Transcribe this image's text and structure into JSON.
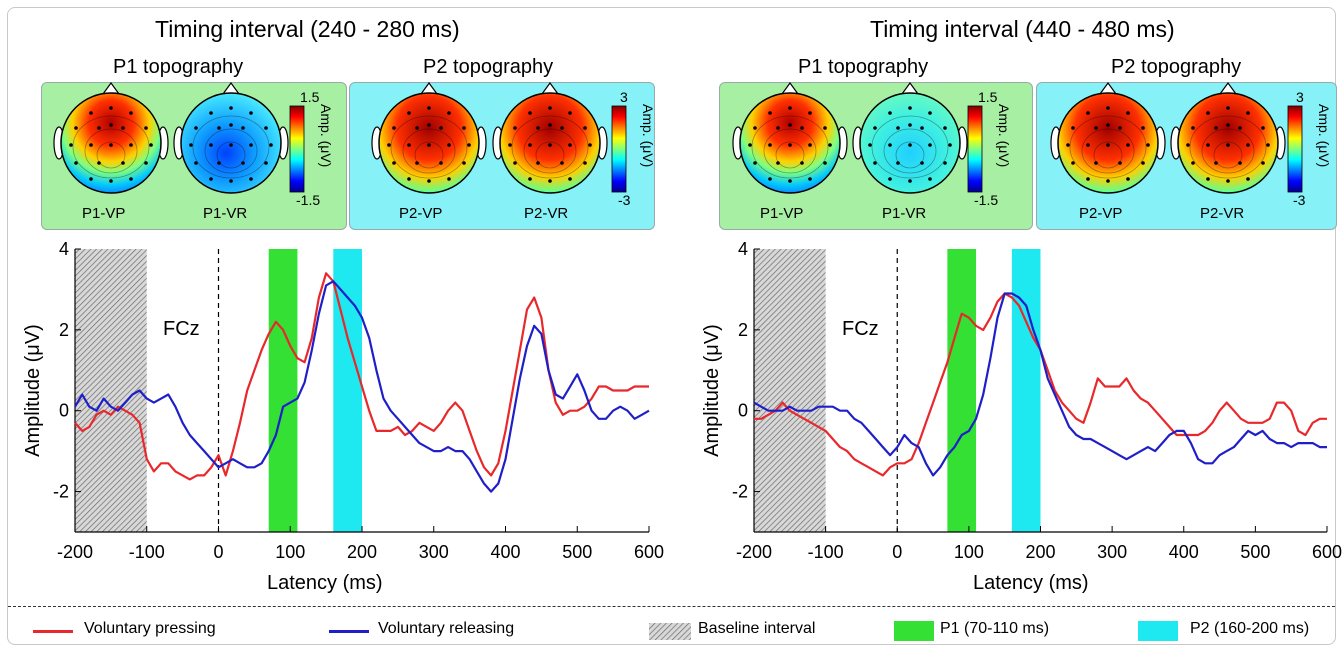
{
  "chart_data": [
    {
      "type": "line",
      "title": "Timing interval (240 - 280 ms)",
      "xlabel": "Latency (ms)",
      "ylabel": "Amplitude (μV)",
      "xlim": [
        -200,
        600
      ],
      "ylim": [
        -3,
        4
      ],
      "xticks": [
        -200,
        -100,
        0,
        100,
        200,
        300,
        400,
        500,
        600
      ],
      "yticks": [
        -2,
        0,
        2,
        4
      ],
      "channel": "FCz",
      "shaded_intervals": [
        {
          "name": "Baseline interval",
          "x": [
            -200,
            -100
          ]
        },
        {
          "name": "P1 (70-110 ms)",
          "x": [
            70,
            110
          ]
        },
        {
          "name": "P2 (160-200 ms)",
          "x": [
            160,
            200
          ]
        }
      ],
      "series": [
        {
          "name": "Voluntary pressing",
          "color": "#e8282b",
          "x": [
            -200,
            -190,
            -180,
            -170,
            -160,
            -150,
            -140,
            -130,
            -120,
            -110,
            -100,
            -90,
            -80,
            -70,
            -60,
            -50,
            -40,
            -30,
            -20,
            -10,
            0,
            10,
            20,
            30,
            40,
            50,
            60,
            70,
            80,
            90,
            100,
            110,
            120,
            130,
            140,
            150,
            160,
            170,
            180,
            190,
            200,
            210,
            220,
            230,
            240,
            250,
            260,
            270,
            280,
            290,
            300,
            310,
            320,
            330,
            340,
            350,
            360,
            370,
            380,
            390,
            400,
            410,
            420,
            430,
            440,
            450,
            460,
            470,
            480,
            490,
            500,
            510,
            520,
            530,
            540,
            550,
            560,
            570,
            580,
            590,
            600
          ],
          "y": [
            -0.3,
            -0.5,
            -0.4,
            -0.1,
            0.0,
            -0.1,
            0.1,
            0.0,
            -0.1,
            -0.3,
            -1.2,
            -1.5,
            -1.3,
            -1.3,
            -1.5,
            -1.6,
            -1.7,
            -1.6,
            -1.6,
            -1.4,
            -1.1,
            -1.6,
            -1.0,
            -0.3,
            0.5,
            1.0,
            1.5,
            1.9,
            2.2,
            2.0,
            1.6,
            1.3,
            1.2,
            1.8,
            2.8,
            3.4,
            3.2,
            2.5,
            1.8,
            1.2,
            0.6,
            0.0,
            -0.5,
            -0.5,
            -0.5,
            -0.4,
            -0.6,
            -0.5,
            -0.3,
            -0.4,
            -0.5,
            -0.3,
            0.0,
            0.2,
            0.0,
            -0.5,
            -1.0,
            -1.4,
            -1.6,
            -1.3,
            -0.5,
            0.5,
            1.5,
            2.5,
            2.8,
            2.3,
            1.0,
            0.2,
            -0.1,
            0.0,
            0.0,
            0.1,
            0.3,
            0.6,
            0.6,
            0.5,
            0.5,
            0.5,
            0.6,
            0.6,
            0.6
          ]
        },
        {
          "name": "Voluntary releasing",
          "color": "#1f1fc8",
          "x": [
            -200,
            -190,
            -180,
            -170,
            -160,
            -150,
            -140,
            -130,
            -120,
            -110,
            -100,
            -90,
            -80,
            -70,
            -60,
            -50,
            -40,
            -30,
            -20,
            -10,
            0,
            10,
            20,
            30,
            40,
            50,
            60,
            70,
            80,
            90,
            100,
            110,
            120,
            130,
            140,
            150,
            160,
            170,
            180,
            190,
            200,
            210,
            220,
            230,
            240,
            250,
            260,
            270,
            280,
            290,
            300,
            310,
            320,
            330,
            340,
            350,
            360,
            370,
            380,
            390,
            400,
            410,
            420,
            430,
            440,
            450,
            460,
            470,
            480,
            490,
            500,
            510,
            520,
            530,
            540,
            550,
            560,
            570,
            580,
            590,
            600
          ],
          "y": [
            0.1,
            0.4,
            0.1,
            0.0,
            0.3,
            0.1,
            0.0,
            0.2,
            0.4,
            0.5,
            0.3,
            0.2,
            0.3,
            0.4,
            0.1,
            -0.3,
            -0.6,
            -0.8,
            -1.0,
            -1.2,
            -1.4,
            -1.3,
            -1.2,
            -1.3,
            -1.4,
            -1.4,
            -1.3,
            -1.0,
            -0.6,
            0.1,
            0.2,
            0.3,
            0.7,
            1.5,
            2.4,
            3.1,
            3.2,
            3.0,
            2.8,
            2.6,
            2.3,
            1.8,
            1.0,
            0.3,
            0.0,
            -0.2,
            -0.4,
            -0.6,
            -0.8,
            -0.9,
            -1.0,
            -1.0,
            -0.9,
            -1.0,
            -1.0,
            -1.2,
            -1.5,
            -1.8,
            -2.0,
            -1.8,
            -1.2,
            -0.2,
            0.8,
            1.6,
            2.1,
            1.9,
            1.0,
            0.4,
            0.3,
            0.6,
            0.9,
            0.5,
            0.0,
            -0.2,
            -0.2,
            0.0,
            0.1,
            0.0,
            -0.2,
            -0.1,
            0.0
          ]
        }
      ]
    },
    {
      "type": "line",
      "title": "Timing interval (440 - 480 ms)",
      "xlabel": "Latency (ms)",
      "ylabel": "Amplitude (μV)",
      "xlim": [
        -200,
        600
      ],
      "ylim": [
        -3,
        4
      ],
      "xticks": [
        -200,
        -100,
        0,
        100,
        200,
        300,
        400,
        500,
        600
      ],
      "yticks": [
        -2,
        0,
        2,
        4
      ],
      "channel": "FCz",
      "shaded_intervals": [
        {
          "name": "Baseline interval",
          "x": [
            -200,
            -100
          ]
        },
        {
          "name": "P1 (70-110 ms)",
          "x": [
            70,
            110
          ]
        },
        {
          "name": "P2 (160-200 ms)",
          "x": [
            160,
            200
          ]
        }
      ],
      "series": [
        {
          "name": "Voluntary pressing",
          "color": "#e8282b",
          "x": [
            -200,
            -190,
            -180,
            -170,
            -160,
            -150,
            -140,
            -130,
            -120,
            -110,
            -100,
            -90,
            -80,
            -70,
            -60,
            -50,
            -40,
            -30,
            -20,
            -10,
            0,
            10,
            20,
            30,
            40,
            50,
            60,
            70,
            80,
            90,
            100,
            110,
            120,
            130,
            140,
            150,
            160,
            170,
            180,
            190,
            200,
            210,
            220,
            230,
            240,
            250,
            260,
            270,
            280,
            290,
            300,
            310,
            320,
            330,
            340,
            350,
            360,
            370,
            380,
            390,
            400,
            410,
            420,
            430,
            440,
            450,
            460,
            470,
            480,
            490,
            500,
            510,
            520,
            530,
            540,
            550,
            560,
            570,
            580,
            590,
            600
          ],
          "y": [
            -0.2,
            -0.2,
            -0.1,
            0.0,
            0.2,
            0.0,
            -0.1,
            -0.2,
            -0.3,
            -0.4,
            -0.5,
            -0.7,
            -0.9,
            -1.0,
            -1.2,
            -1.3,
            -1.4,
            -1.5,
            -1.6,
            -1.4,
            -1.3,
            -1.3,
            -1.2,
            -0.8,
            -0.3,
            0.2,
            0.7,
            1.2,
            1.8,
            2.4,
            2.3,
            2.1,
            2.0,
            2.3,
            2.7,
            2.9,
            2.8,
            2.6,
            2.2,
            1.8,
            1.5,
            1.0,
            0.5,
            0.2,
            0.0,
            -0.2,
            -0.3,
            0.2,
            0.8,
            0.6,
            0.6,
            0.6,
            0.8,
            0.5,
            0.3,
            0.2,
            0.0,
            -0.2,
            -0.4,
            -0.6,
            -0.6,
            -0.6,
            -0.6,
            -0.5,
            -0.3,
            0.0,
            0.2,
            0.0,
            -0.2,
            -0.3,
            -0.3,
            -0.3,
            -0.2,
            0.2,
            0.2,
            0.0,
            -0.5,
            -0.6,
            -0.3,
            -0.2,
            -0.2
          ]
        },
        {
          "name": "Voluntary releasing",
          "color": "#1f1fc8",
          "x": [
            -200,
            -190,
            -180,
            -170,
            -160,
            -150,
            -140,
            -130,
            -120,
            -110,
            -100,
            -90,
            -80,
            -70,
            -60,
            -50,
            -40,
            -30,
            -20,
            -10,
            0,
            10,
            20,
            30,
            40,
            50,
            60,
            70,
            80,
            90,
            100,
            110,
            120,
            130,
            140,
            150,
            160,
            170,
            180,
            190,
            200,
            210,
            220,
            230,
            240,
            250,
            260,
            270,
            280,
            290,
            300,
            310,
            320,
            330,
            340,
            350,
            360,
            370,
            380,
            390,
            400,
            410,
            420,
            430,
            440,
            450,
            460,
            470,
            480,
            490,
            500,
            510,
            520,
            530,
            540,
            550,
            560,
            570,
            580,
            590,
            600
          ],
          "y": [
            0.2,
            0.1,
            0.0,
            0.0,
            0.0,
            0.1,
            0.0,
            0.0,
            0.0,
            0.1,
            0.1,
            0.1,
            0.0,
            0.0,
            -0.2,
            -0.3,
            -0.5,
            -0.7,
            -0.9,
            -1.1,
            -0.9,
            -0.6,
            -0.8,
            -0.9,
            -1.3,
            -1.6,
            -1.4,
            -1.1,
            -0.9,
            -0.6,
            -0.5,
            -0.2,
            0.4,
            1.3,
            2.3,
            2.9,
            2.9,
            2.8,
            2.6,
            2.0,
            1.5,
            0.8,
            0.4,
            0.0,
            -0.4,
            -0.6,
            -0.7,
            -0.7,
            -0.8,
            -0.9,
            -1.0,
            -1.1,
            -1.2,
            -1.1,
            -1.0,
            -0.9,
            -1.0,
            -0.8,
            -0.6,
            -0.5,
            -0.5,
            -0.8,
            -1.2,
            -1.3,
            -1.3,
            -1.1,
            -1.0,
            -0.9,
            -0.7,
            -0.5,
            -0.6,
            -0.5,
            -0.7,
            -0.8,
            -0.8,
            -0.9,
            -0.8,
            -0.8,
            -0.8,
            -0.9,
            -0.9
          ]
        }
      ]
    }
  ],
  "panels": [
    {
      "title": "Timing interval (240 - 280 ms)",
      "p1_title": "P1 topography",
      "p2_title": "P2 topography",
      "p1_heads": [
        "P1-VP",
        "P1-VR"
      ],
      "p2_heads": [
        "P2-VP",
        "P2-VR"
      ],
      "p1_scale": {
        "max": "1.5",
        "min": "-1.5"
      },
      "p2_scale": {
        "max": "3",
        "min": "-3"
      },
      "amp_label": "Amp. (μV)",
      "channel": "FCz",
      "xlabel": "Latency (ms)",
      "ylabel": "Amplitude (μV)"
    },
    {
      "title": "Timing interval (440 - 480 ms)",
      "p1_title": "P1 topography",
      "p2_title": "P2 topography",
      "p1_heads": [
        "P1-VP",
        "P1-VR"
      ],
      "p2_heads": [
        "P2-VP",
        "P2-VR"
      ],
      "p1_scale": {
        "max": "1.5",
        "min": "-1.5"
      },
      "p2_scale": {
        "max": "3",
        "min": "-3"
      },
      "amp_label": "Amp. (μV)",
      "channel": "FCz",
      "xlabel": "Latency (ms)",
      "ylabel": "Amplitude (μV)"
    }
  ],
  "legend": {
    "pressing": "Voluntary pressing",
    "releasing": "Voluntary releasing",
    "baseline": "Baseline interval",
    "p1": "P1 (70-110 ms)",
    "p2": "P2 (160-200 ms)"
  },
  "colors": {
    "pressing": "#e8282b",
    "releasing": "#1f1fc8",
    "p1": "#33e033",
    "p2": "#1ee8f0",
    "p1_box": "#a7efa3",
    "p2_box": "#86f1f6"
  }
}
